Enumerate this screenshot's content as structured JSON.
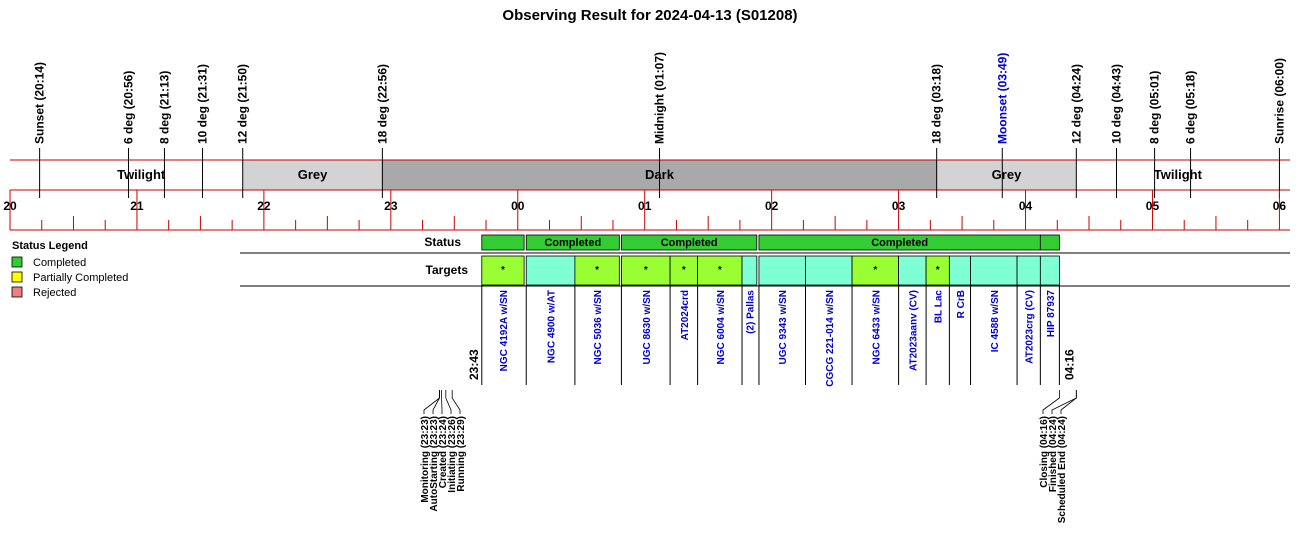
{
  "chart_data": {
    "type": "timeline",
    "title": "Observing Result for 2024-04-13 (S01208)",
    "x_unit": "hour",
    "xlim": [
      "20:00",
      "06:05"
    ],
    "hour_ticks": [
      "20",
      "21",
      "22",
      "23",
      "00",
      "01",
      "02",
      "03",
      "04",
      "05",
      "06"
    ],
    "events": [
      {
        "label": "Sunset (20:14)",
        "time": "20:14",
        "color": "#000000"
      },
      {
        "label": "6 deg (20:56)",
        "time": "20:56",
        "color": "#000000"
      },
      {
        "label": "8 deg (21:13)",
        "time": "21:13",
        "color": "#000000"
      },
      {
        "label": "10 deg (21:31)",
        "time": "21:31",
        "color": "#000000"
      },
      {
        "label": "12 deg (21:50)",
        "time": "21:50",
        "color": "#000000"
      },
      {
        "label": "18 deg (22:56)",
        "time": "22:56",
        "color": "#000000"
      },
      {
        "label": "Midnight (01:07)",
        "time": "01:07",
        "color": "#000000"
      },
      {
        "label": "18 deg (03:18)",
        "time": "03:18",
        "color": "#000000"
      },
      {
        "label": "Moonset (03:49)",
        "time": "03:49",
        "color": "#0000cc"
      },
      {
        "label": "12 deg (04:24)",
        "time": "04:24",
        "color": "#000000"
      },
      {
        "label": "10 deg (04:43)",
        "time": "04:43",
        "color": "#000000"
      },
      {
        "label": "8 deg (05:01)",
        "time": "05:01",
        "color": "#000000"
      },
      {
        "label": "6 deg (05:18)",
        "time": "05:18",
        "color": "#000000"
      },
      {
        "label": "Sunrise (06:00)",
        "time": "06:00",
        "color": "#000000"
      }
    ],
    "bands": [
      {
        "label": "",
        "start": "20:00",
        "end": "20:14",
        "color": "#ffffff"
      },
      {
        "label": "Twilight",
        "start": "20:14",
        "end": "21:50",
        "color": "#ffffff"
      },
      {
        "label": "Grey",
        "start": "21:50",
        "end": "22:56",
        "color": "#d3d3d3"
      },
      {
        "label": "Dark",
        "start": "22:56",
        "end": "03:18",
        "color": "#a9a9a9"
      },
      {
        "label": "Grey",
        "start": "03:18",
        "end": "04:24",
        "color": "#d3d3d3"
      },
      {
        "label": "Twilight",
        "start": "04:24",
        "end": "06:00",
        "color": "#ffffff"
      },
      {
        "label": "",
        "start": "06:00",
        "end": "06:05",
        "color": "#ffffff"
      }
    ],
    "status_label": "Status",
    "targets_label": "Targets",
    "status_segments": [
      {
        "label": "",
        "start": "23:43",
        "end": "00:03",
        "color": "#33cc33"
      },
      {
        "label": "Completed",
        "start": "00:04",
        "end": "00:48",
        "color": "#33cc33"
      },
      {
        "label": "Completed",
        "start": "00:49",
        "end": "01:53",
        "color": "#33cc33"
      },
      {
        "label": "Completed",
        "start": "01:54",
        "end": "04:07",
        "color": "#33cc33"
      },
      {
        "label": "",
        "start": "04:07",
        "end": "04:16",
        "color": "#33cc33"
      }
    ],
    "targets": [
      {
        "name": "NGC 4192A w/SN",
        "start": "23:43",
        "end": "00:03",
        "color": "#99ff33",
        "mark": "*"
      },
      {
        "name": "NGC 4900 w/AT",
        "start": "00:04",
        "end": "00:27",
        "color": "#7fffd4",
        "mark": ""
      },
      {
        "name": "NGC 5036 w/SN",
        "start": "00:27",
        "end": "00:48",
        "color": "#99ff33",
        "mark": "*"
      },
      {
        "name": "UGC 8630 w/SN",
        "start": "00:49",
        "end": "01:12",
        "color": "#99ff33",
        "mark": "*"
      },
      {
        "name": "AT2024crd",
        "start": "01:12",
        "end": "01:25",
        "color": "#99ff33",
        "mark": "*"
      },
      {
        "name": "NGC 6004 w/SN",
        "start": "01:25",
        "end": "01:46",
        "color": "#99ff33",
        "mark": "*"
      },
      {
        "name": "(2) Pallas",
        "start": "01:46",
        "end": "01:53",
        "color": "#7fffd4",
        "mark": ""
      },
      {
        "name": "UGC 9343 w/SN",
        "start": "01:54",
        "end": "02:16",
        "color": "#7fffd4",
        "mark": ""
      },
      {
        "name": "CGCG 221-014 w/SN",
        "start": "02:16",
        "end": "02:38",
        "color": "#7fffd4",
        "mark": ""
      },
      {
        "name": "NGC 6433 w/SN",
        "start": "02:38",
        "end": "03:00",
        "color": "#99ff33",
        "mark": "*"
      },
      {
        "name": "AT2023aanv (CV)",
        "start": "03:00",
        "end": "03:13",
        "color": "#7fffd4",
        "mark": ""
      },
      {
        "name": "BL Lac",
        "start": "03:13",
        "end": "03:24",
        "color": "#99ff33",
        "mark": "*"
      },
      {
        "name": "R CrB",
        "start": "03:24",
        "end": "03:34",
        "color": "#7fffd4",
        "mark": ""
      },
      {
        "name": "IC 4588 w/SN",
        "start": "03:34",
        "end": "03:56",
        "color": "#7fffd4",
        "mark": ""
      },
      {
        "name": "AT2023crg (CV)",
        "start": "03:56",
        "end": "04:07",
        "color": "#7fffd4",
        "mark": ""
      },
      {
        "name": "HIP 87937",
        "start": "04:07",
        "end": "04:16",
        "color": "#7fffd4",
        "mark": ""
      }
    ],
    "start_time_label": "23:43",
    "end_time_label": "04:16",
    "start_statuses": [
      {
        "label": "Monitoring (23:23)",
        "time": "23:23"
      },
      {
        "label": "AutoStarting (23:23)",
        "time": "23:23"
      },
      {
        "label": "Created (23:24)",
        "time": "23:24"
      },
      {
        "label": "Initiating (23:26)",
        "time": "23:26"
      },
      {
        "label": "Running (23:29)",
        "time": "23:29"
      }
    ],
    "end_statuses": [
      {
        "label": "Closing (04:16)",
        "time": "04:16"
      },
      {
        "label": "Finished (04:24)",
        "time": "04:24"
      },
      {
        "label": "Scheduled End (04:24)",
        "time": "04:24"
      }
    ],
    "legend": {
      "title": "Status Legend",
      "placement": "left",
      "items": [
        {
          "label": "Completed",
          "color": "#33cc33"
        },
        {
          "label": "Partially Completed",
          "color": "#ffff00"
        },
        {
          "label": "Rejected",
          "color": "#f08080"
        }
      ]
    },
    "colors": {
      "axis": "#cc0000",
      "divider": "#000000"
    }
  }
}
